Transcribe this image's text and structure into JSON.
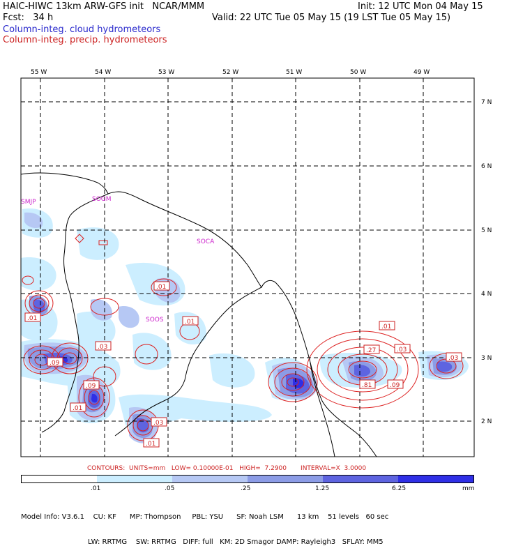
{
  "header": {
    "title_left": "HAIC-HIWC 13km ARW-GFS init   NCAR/MMM",
    "init": "Init: 12 UTC Mon 04 May 15",
    "fcst": "Fcst:   34 h",
    "valid": "Valid: 22 UTC Tue 05 May 15 (19 LST Tue 05 May 15)",
    "field_cloud": "Column-integ. cloud hydrometeors",
    "field_precip": "Column-integ. precip. hydrometeors"
  },
  "colors": {
    "cloud_label": "#2a2acc",
    "precip_label": "#cc2222",
    "contour": "#dd2222",
    "coast": "#000000",
    "station": "#cc22cc",
    "shade": [
      "#ffffff",
      "#cceeff",
      "#b6c8f4",
      "#8c9ce6",
      "#5e64e0",
      "#2f2fe6"
    ]
  },
  "axes": {
    "lon_labels": [
      "55 W",
      "54 W",
      "53 W",
      "52 W",
      "51 W",
      "50 W",
      "49 W"
    ],
    "lat_labels": [
      "7 N",
      "6 N",
      "5 N",
      "4 N",
      "3 N",
      "2 N"
    ]
  },
  "stations": [
    "SMJP",
    "SOGM",
    "SOCA",
    "SOOS"
  ],
  "contour_labels": [
    ".01",
    ".01",
    ".01",
    ".03",
    ".09",
    ".09",
    ".01",
    ".03",
    ".01",
    ".01",
    ".27",
    ".03",
    ".81",
    ".09",
    ".03"
  ],
  "contours_info": "CONTOURS:  UNITS=mm   LOW= 0.10000E-01   HIGH=  7.2900       INTERVAL=X  3.0000",
  "colorbar": {
    "ticks": [
      ".01",
      ".05",
      ".25",
      "1.25",
      "6.25",
      "mm"
    ]
  },
  "model_info": {
    "line1": "Model Info: V3.6.1    CU: KF      MP: Thompson     PBL: YSU      SF: Noah LSM      13 km    51 levels   60 sec",
    "line2": "LW: RRTMG    SW: RRTMG   DIFF: full   KM: 2D Smagor DAMP: Rayleigh3   SFLAY: MM5"
  }
}
